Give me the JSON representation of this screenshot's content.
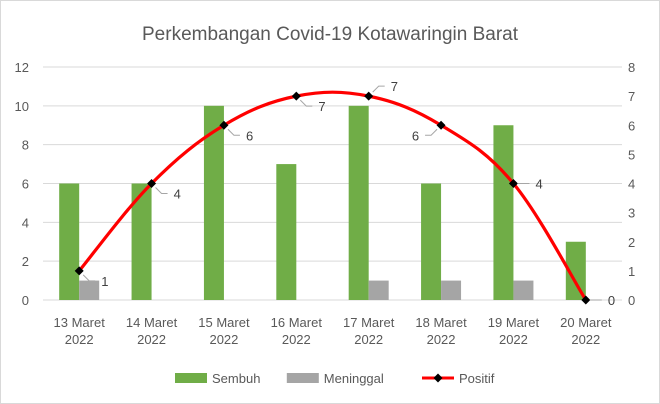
{
  "chart_data": {
    "type": "bar",
    "title": "Perkembangan  Covid-19 Kotawaringin Barat",
    "categories": [
      [
        "13 Maret",
        "2022"
      ],
      [
        "14 Maret",
        "2022"
      ],
      [
        "15 Maret",
        "2022"
      ],
      [
        "16 Maret",
        "2022"
      ],
      [
        "17 Maret",
        "2022"
      ],
      [
        "18 Maret",
        "2022"
      ],
      [
        "19 Maret",
        "2022"
      ],
      [
        "20 Maret",
        "2022"
      ]
    ],
    "series": [
      {
        "name": "Sembuh",
        "type": "bar",
        "axis": "left",
        "color": "#70ad47",
        "values": [
          6,
          6,
          10,
          7,
          10,
          6,
          9,
          3
        ]
      },
      {
        "name": "Meninggal",
        "type": "bar",
        "axis": "left",
        "color": "#a5a5a5",
        "values": [
          1,
          0,
          0,
          0,
          1,
          1,
          1,
          0
        ]
      },
      {
        "name": "Positif",
        "type": "line",
        "axis": "right",
        "color": "#ff0000",
        "marker_color": "#000000",
        "values": [
          1,
          4,
          6,
          7,
          7,
          6,
          4,
          0
        ],
        "data_labels": true
      }
    ],
    "y_left": {
      "ylim": [
        0,
        12
      ],
      "ticks": [
        "0",
        "2",
        "4",
        "6",
        "8",
        "10",
        "12"
      ]
    },
    "y_right": {
      "ylim": [
        0,
        8
      ],
      "ticks": [
        "0",
        "1",
        "2",
        "3",
        "4",
        "5",
        "6",
        "7",
        "8"
      ]
    },
    "grid": true,
    "legend": "bottom"
  }
}
